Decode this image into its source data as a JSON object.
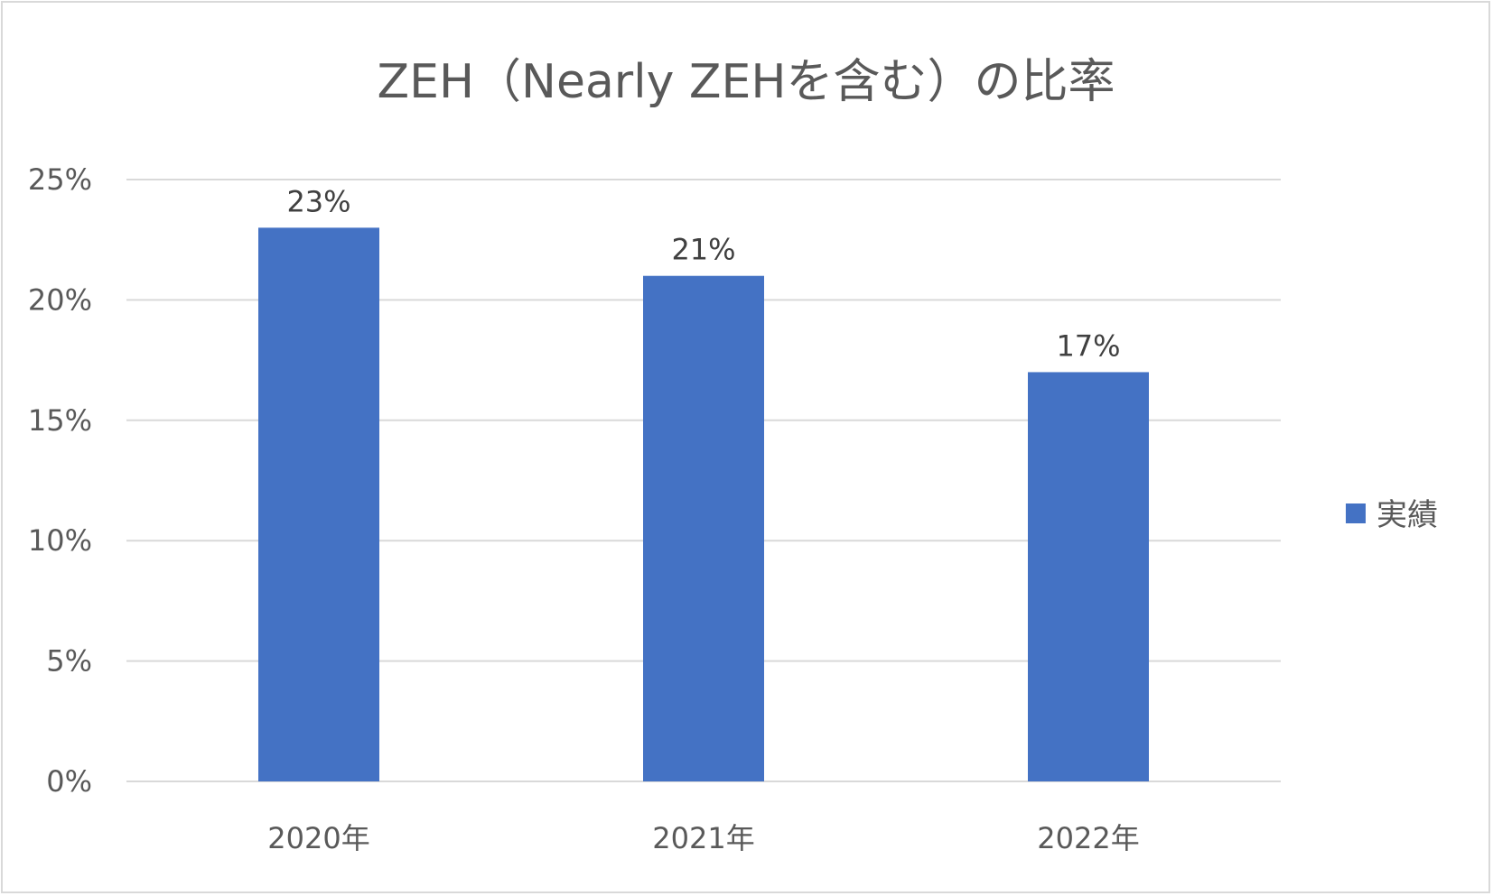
{
  "chart_data": {
    "type": "bar",
    "title": "ZEH（Nearly ZEHを含む）の比率",
    "categories": [
      "2020年",
      "2021年",
      "2022年"
    ],
    "series": [
      {
        "name": "実績",
        "values": [
          23,
          21,
          17
        ],
        "data_labels": [
          "23%",
          "21%",
          "17%"
        ],
        "color": "#4472c4"
      }
    ],
    "y_ticks": [
      "0%",
      "5%",
      "10%",
      "15%",
      "20%",
      "25%"
    ],
    "ylim": [
      0,
      25
    ],
    "grid": true,
    "legend_position": "right",
    "colors": {
      "gridline": "#d9d9d9",
      "text": "#595959",
      "border": "#d9d9d9"
    }
  }
}
